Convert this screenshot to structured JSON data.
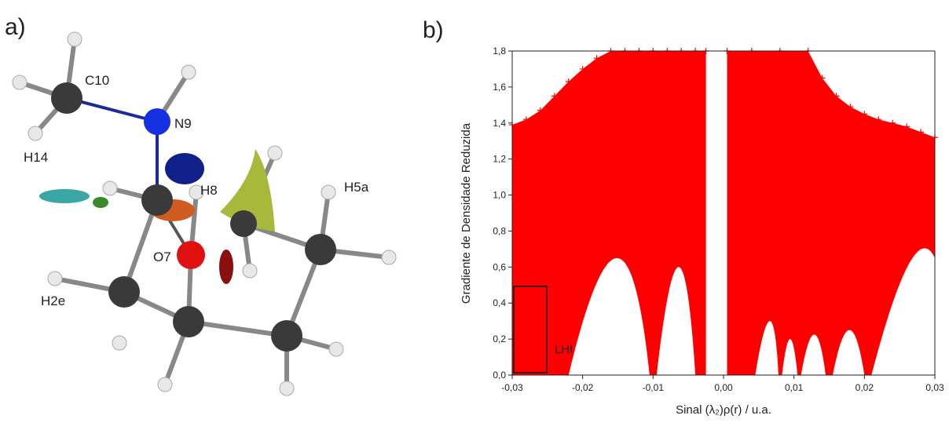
{
  "panel_a": {
    "label": "a)",
    "atoms": [
      "C10",
      "N9",
      "H14",
      "H8",
      "H5a",
      "O7",
      "H2e"
    ]
  },
  "chart_data": {
    "type": "scatter",
    "panel_label": "b)",
    "x_label": "Sinal (λ₂)ρ(r) / u.a.",
    "y_label": "Gradiente de Densidade Reduzida",
    "annotation": "LHI",
    "color": "#ff0000",
    "x": [
      -0.03,
      -0.028,
      -0.026,
      -0.024,
      -0.022,
      -0.02,
      -0.018,
      -0.016,
      -0.014,
      -0.012,
      -0.01,
      -0.008,
      -0.006,
      -0.004,
      -0.0025,
      null,
      0.0005,
      0.004,
      0.008,
      0.012,
      0.014,
      0.016,
      0.018,
      0.02,
      0.022,
      0.024,
      0.026,
      0.028,
      0.03
    ],
    "values": [
      1.39,
      1.42,
      1.47,
      1.55,
      1.63,
      1.7,
      1.76,
      1.8,
      1.8,
      1.8,
      1.8,
      1.8,
      1.8,
      1.8,
      1.8,
      null,
      1.8,
      1.8,
      1.8,
      1.8,
      1.65,
      1.55,
      1.49,
      1.45,
      1.42,
      1.4,
      1.38,
      1.35,
      1.32
    ],
    "xlim": [
      -0.03,
      0.03
    ],
    "xticks": [
      {
        "value": -0.03,
        "label": "-0,03"
      },
      {
        "value": -0.02,
        "label": "-0,02"
      },
      {
        "value": -0.01,
        "label": "-0,01"
      },
      {
        "value": 0,
        "label": "0,00"
      },
      {
        "value": 0.01,
        "label": "0,01"
      },
      {
        "value": 0.02,
        "label": "0,02"
      },
      {
        "value": 0.03,
        "label": "0,03"
      }
    ],
    "ylim": [
      0,
      1.8
    ],
    "yticks": [
      {
        "value": 0,
        "label": "0,0"
      },
      {
        "value": 0.2,
        "label": "0,2"
      },
      {
        "value": 0.4,
        "label": "0,4"
      },
      {
        "value": 0.6,
        "label": "0,6"
      },
      {
        "value": 0.8,
        "label": "0,8"
      },
      {
        "value": 1.0,
        "label": "1,0"
      },
      {
        "value": 1.2,
        "label": "1,2"
      },
      {
        "value": 1.4,
        "label": "1,4"
      },
      {
        "value": 1.6,
        "label": "1,6"
      },
      {
        "value": 1.8,
        "label": "1,8"
      }
    ]
  }
}
